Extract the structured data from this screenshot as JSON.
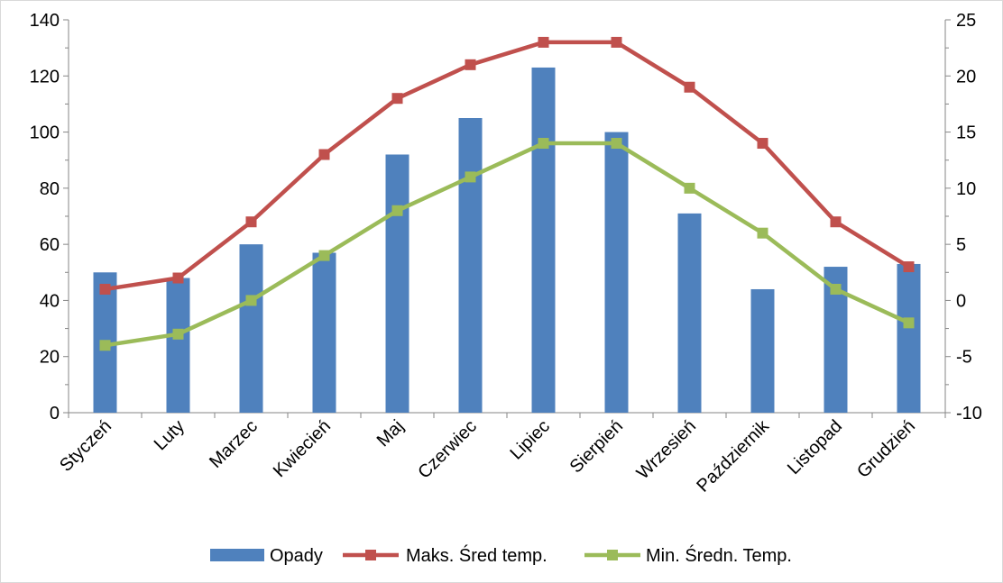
{
  "chart_data": {
    "type": "bar+line",
    "categories": [
      "Styczeń",
      "Luty",
      "Marzec",
      "Kwiecień",
      "Maj",
      "Czerwiec",
      "Lipiec",
      "Sierpień",
      "Wrzesień",
      "Październik",
      "Listopad",
      "Grudzień"
    ],
    "series": [
      {
        "name": "Opady",
        "type": "bar",
        "axis": "left",
        "color": "#4f81bd",
        "values": [
          50,
          48,
          60,
          57,
          92,
          105,
          123,
          100,
          71,
          44,
          52,
          53
        ]
      },
      {
        "name": "Maks. Śred temp.",
        "type": "line",
        "axis": "right",
        "color": "#c0504d",
        "values": [
          1,
          2,
          7,
          13,
          18,
          21,
          23,
          23,
          19,
          14,
          7,
          3
        ]
      },
      {
        "name": "Min. Średn. Temp.",
        "type": "line",
        "axis": "right",
        "color": "#9bbb59",
        "values": [
          -4,
          -3,
          0,
          4,
          8,
          11,
          14,
          14,
          10,
          6,
          1,
          -2
        ]
      }
    ],
    "y_left": {
      "min": 0,
      "max": 140,
      "major": 20,
      "ticks": [
        "0",
        "20",
        "40",
        "60",
        "80",
        "100",
        "120",
        "140"
      ]
    },
    "y_right": {
      "min": -10,
      "max": 25,
      "major": 5,
      "ticks": [
        "-10",
        "-5",
        "0",
        "5",
        "10",
        "15",
        "20",
        "25"
      ]
    },
    "title": "",
    "xlabel": "",
    "ylabel": "",
    "grid": false,
    "legend": "bottom"
  }
}
